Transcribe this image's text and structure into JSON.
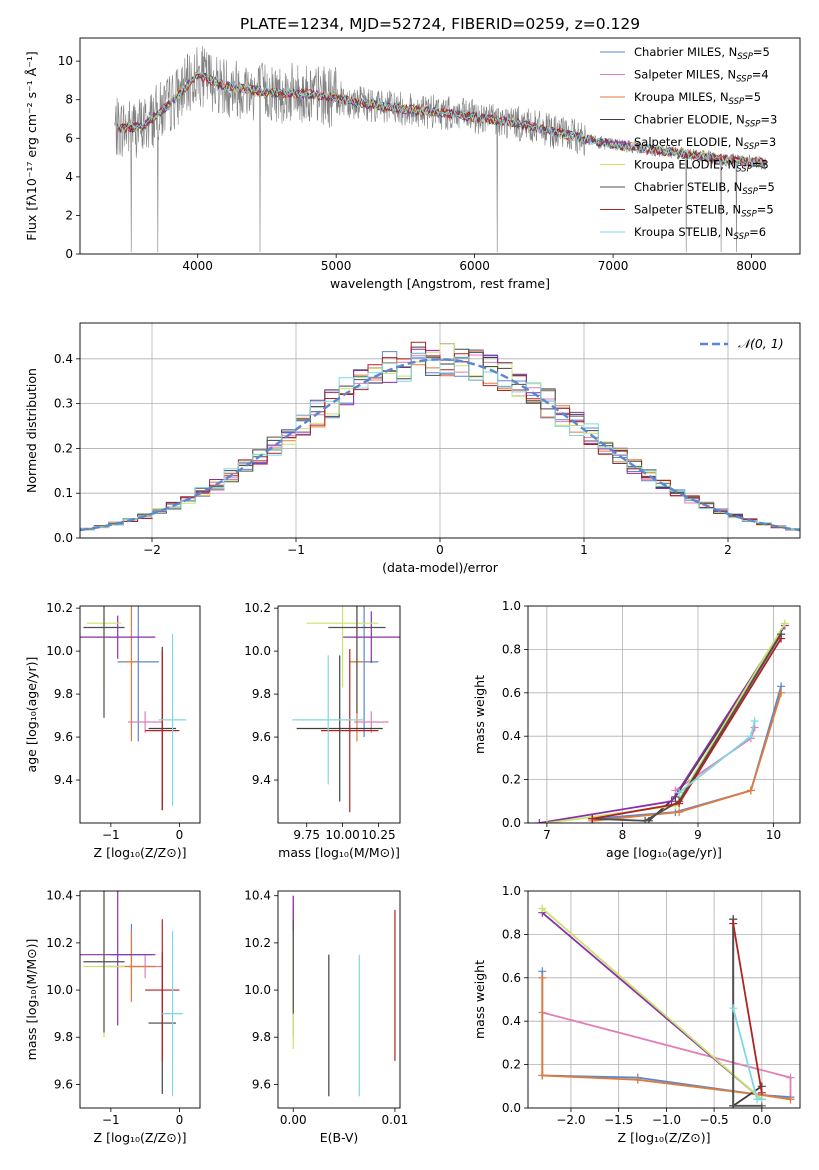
{
  "title": "PLATE=1234, MJD=52724, FIBERID=0259, z=0.129",
  "colors": [
    "#5b87d0",
    "#e07fb6",
    "#e07b39",
    "#404040",
    "#8b2fa8",
    "#c8e46c",
    "#505050",
    "#b22222",
    "#7fd8df"
  ],
  "models": [
    {
      "label": "Chabrier MILES, N",
      "sub": "SSP",
      "suffix": "=5",
      "color": "#5b87d0"
    },
    {
      "label": "Salpeter MILES, N",
      "sub": "SSP",
      "suffix": "=4",
      "color": "#e07fb6"
    },
    {
      "label": "Kroupa MILES, N",
      "sub": "SSP",
      "suffix": "=5",
      "color": "#e07b39"
    },
    {
      "label": "Chabrier ELODIE, N",
      "sub": "SSP",
      "suffix": "=3",
      "color": "#404040"
    },
    {
      "label": "Salpeter ELODIE, N",
      "sub": "SSP",
      "suffix": "=3",
      "color": "#8b2fa8"
    },
    {
      "label": "Kroupa ELODIE, N",
      "sub": "SSP",
      "suffix": "=3",
      "color": "#c8e46c"
    },
    {
      "label": "Chabrier STELIB, N",
      "sub": "SSP",
      "suffix": "=5",
      "color": "#505050"
    },
    {
      "label": "Salpeter STELIB, N",
      "sub": "SSP",
      "suffix": "=5",
      "color": "#b22222"
    },
    {
      "label": "Kroupa STELIB, N",
      "sub": "SSP",
      "suffix": "=6",
      "color": "#7fd8df"
    }
  ],
  "chart_data": [
    {
      "id": "spectrum",
      "type": "line",
      "xlabel": "wavelength [Angstrom, rest frame]",
      "ylabel": "Flux [fλ10⁻¹⁷ erg cm⁻² s⁻¹ Å⁻¹]",
      "xlim": [
        3150,
        8350
      ],
      "ylim": [
        0,
        11.2
      ],
      "xticks": [
        4000,
        5000,
        6000,
        7000,
        8000
      ],
      "yticks": [
        0,
        2,
        4,
        6,
        8,
        10
      ],
      "continuum": {
        "x": [
          3400,
          3600,
          3800,
          4000,
          4200,
          4500,
          4800,
          5000,
          5200,
          5500,
          5800,
          6000,
          6300,
          6600,
          6900,
          7200,
          7500,
          7800,
          8100
        ],
        "y": [
          6.5,
          6.6,
          7.8,
          9.3,
          8.7,
          8.4,
          8.3,
          8.1,
          7.8,
          7.5,
          7.3,
          7.1,
          6.8,
          6.3,
          5.8,
          5.5,
          5.2,
          4.9,
          4.7
        ]
      },
      "grid": false,
      "legend": "top-right"
    },
    {
      "id": "residuals",
      "type": "bar",
      "xlabel": "(data-model)/error",
      "ylabel": "Normed distribution",
      "xlim": [
        -2.5,
        2.5
      ],
      "ylim": [
        0,
        0.48
      ],
      "xticks": [
        -2,
        -1,
        0,
        1,
        2
      ],
      "yticks": [
        0.0,
        0.1,
        0.2,
        0.3,
        0.4
      ],
      "grid": true,
      "legend": "top-right",
      "gauss_label": "𝒩(0, 1)",
      "gauss_color": "#5b87d0"
    },
    {
      "id": "age-vs-Z",
      "type": "scatter",
      "xlabel": "Z [log₁₀(Z/Z⊙)]",
      "ylabel": "age  [log₁₀(age/yr)]",
      "xlim": [
        -1.45,
        0.3
      ],
      "ylim": [
        9.2,
        10.21
      ],
      "xticks": [
        -1,
        0
      ],
      "yticks": [
        9.4,
        9.6,
        9.8,
        10.0,
        10.2
      ],
      "points": [
        {
          "x": -0.6,
          "y": 9.95,
          "xerr": 0.3,
          "yerr": 0.37
        },
        {
          "x": -0.5,
          "y": 9.67,
          "xerr": 0.25,
          "yerr": 0.05
        },
        {
          "x": -0.7,
          "y": 9.95,
          "xerr": 0.1,
          "yerr": 0.37
        },
        {
          "x": -0.25,
          "y": 9.64,
          "xerr": 0.2,
          "yerr": 0.38
        },
        {
          "x": -0.9,
          "y": 10.065,
          "xerr": 0.55,
          "yerr": 0.1
        },
        {
          "x": -1.1,
          "y": 10.13,
          "xerr": 0.25,
          "yerr": 0.3
        },
        {
          "x": -1.1,
          "y": 10.11,
          "xerr": 0.3,
          "yerr": 0.42
        },
        {
          "x": -0.25,
          "y": 9.63,
          "xerr": 0.25,
          "yerr": 0.37
        },
        {
          "x": -0.1,
          "y": 9.68,
          "xerr": 0.2,
          "yerr": 0.4
        }
      ]
    },
    {
      "id": "age-vs-mass",
      "type": "scatter",
      "xlabel": "mass [log₁₀(M/M⊙)]",
      "ylabel": "",
      "xlim": [
        9.55,
        10.4
      ],
      "ylim": [
        9.2,
        10.21
      ],
      "xticks": [
        9.75,
        10.0,
        10.25
      ],
      "xticklabels": [
        "9.75",
        "10.00",
        "10.25"
      ],
      "yticks": [
        9.4,
        9.6,
        9.8,
        10.0,
        10.2
      ],
      "points": [
        {
          "x": 10.15,
          "y": 9.95,
          "xerr": 0.1,
          "yerr": 0.35
        },
        {
          "x": 10.2,
          "y": 9.67,
          "xerr": 0.12,
          "yerr": 0.05
        },
        {
          "x": 10.1,
          "y": 9.95,
          "xerr": 0.05,
          "yerr": 0.37
        },
        {
          "x": 9.98,
          "y": 9.64,
          "xerr": 0.3,
          "yerr": 0.34
        },
        {
          "x": 10.2,
          "y": 10.065,
          "xerr": 0.2,
          "yerr": 0.12
        },
        {
          "x": 10.0,
          "y": 10.13,
          "xerr": 0.25,
          "yerr": 0.3
        },
        {
          "x": 10.1,
          "y": 10.11,
          "xerr": 0.2,
          "yerr": 0.4
        },
        {
          "x": 10.05,
          "y": 9.63,
          "xerr": 0.2,
          "yerr": 0.38
        },
        {
          "x": 9.9,
          "y": 9.68,
          "xerr": 0.25,
          "yerr": 0.3
        }
      ]
    },
    {
      "id": "massweight-vs-age",
      "type": "line",
      "xlabel": "age  [log₁₀(age/yr)]",
      "ylabel": "mass weight",
      "xlim": [
        6.75,
        10.35
      ],
      "ylim": [
        0.0,
        1.0
      ],
      "xticks": [
        7,
        8,
        9,
        10
      ],
      "yticks": [
        0.0,
        0.2,
        0.4,
        0.6,
        0.8,
        1.0
      ],
      "grid": true,
      "series": [
        {
          "x": [
            7.6,
            8.7,
            9.7,
            10.1
          ],
          "y": [
            0.02,
            0.05,
            0.15,
            0.63
          ]
        },
        {
          "x": [
            8.7,
            9.7,
            9.75
          ],
          "y": [
            0.15,
            0.39,
            0.44
          ]
        },
        {
          "x": [
            7.6,
            8.75,
            9.7,
            10.1
          ],
          "y": [
            0.01,
            0.05,
            0.15,
            0.6
          ]
        },
        {
          "x": [
            8.35,
            8.7,
            10.1
          ],
          "y": [
            0.01,
            0.12,
            0.87
          ]
        },
        {
          "x": [
            6.9,
            8.65,
            10.15
          ],
          "y": [
            0.0,
            0.1,
            0.91
          ]
        },
        {
          "x": [
            7.0,
            8.7,
            10.15
          ],
          "y": [
            0.0,
            0.08,
            0.92
          ]
        },
        {
          "x": [
            7.6,
            8.3,
            8.75,
            10.1
          ],
          "y": [
            0.02,
            0.01,
            0.1,
            0.87
          ]
        },
        {
          "x": [
            7.6,
            8.75,
            10.1
          ],
          "y": [
            0.02,
            0.09,
            0.85
          ]
        },
        {
          "x": [
            8.75,
            9.7,
            9.75
          ],
          "y": [
            0.14,
            0.4,
            0.47
          ]
        }
      ]
    },
    {
      "id": "mass-vs-Z",
      "type": "scatter",
      "xlabel": "Z [log₁₀(Z/Z⊙)]",
      "ylabel": "mass [log₁₀(M/M⊙)]",
      "xlim": [
        -1.45,
        0.3
      ],
      "ylim": [
        9.5,
        10.42
      ],
      "xticks": [
        -1,
        0
      ],
      "yticks": [
        9.6,
        9.8,
        10.0,
        10.2,
        10.4
      ],
      "points": [
        {
          "x": -0.7,
          "y": 10.15,
          "xerr": 0.3,
          "yerr": 0.13
        },
        {
          "x": -0.5,
          "y": 10.1,
          "xerr": 0.25,
          "yerr": 0.05
        },
        {
          "x": -0.7,
          "y": 10.1,
          "xerr": 0.35,
          "yerr": 0.15
        },
        {
          "x": -0.25,
          "y": 9.86,
          "xerr": 0.2,
          "yerr": 0.3
        },
        {
          "x": -0.9,
          "y": 10.15,
          "xerr": 0.55,
          "yerr": 0.3
        },
        {
          "x": -1.1,
          "y": 10.1,
          "xerr": 0.3,
          "yerr": 0.3
        },
        {
          "x": -1.1,
          "y": 10.12,
          "xerr": 0.3,
          "yerr": 0.3
        },
        {
          "x": -0.25,
          "y": 10.0,
          "xerr": 0.25,
          "yerr": 0.3
        },
        {
          "x": -0.1,
          "y": 9.9,
          "xerr": 0.15,
          "yerr": 0.35
        }
      ]
    },
    {
      "id": "mass-vs-EBV",
      "type": "scatter",
      "xlabel": "E(B-V)",
      "ylabel": "",
      "xlim": [
        -0.0015,
        0.0105
      ],
      "ylim": [
        9.5,
        10.42
      ],
      "xticks": [
        0.0,
        0.01
      ],
      "xticklabels": [
        "0.00",
        "0.01"
      ],
      "yticks": [
        9.6,
        9.8,
        10.0,
        10.2,
        10.4
      ],
      "points": [
        {
          "x": 0.0,
          "y": 10.15,
          "xerr": 0,
          "yerr": 0.2
        },
        {
          "x": 0.0,
          "y": 10.1,
          "xerr": 0,
          "yerr": 0.3
        },
        {
          "x": 0.0,
          "y": 10.1,
          "xerr": 0,
          "yerr": 0.15
        },
        {
          "x": 0.0035,
          "y": 9.85,
          "xerr": 0,
          "yerr": 0.3
        },
        {
          "x": 0.0,
          "y": 10.2,
          "xerr": 0,
          "yerr": 0.2
        },
        {
          "x": 0.0,
          "y": 10.0,
          "xerr": 0,
          "yerr": 0.25
        },
        {
          "x": 0.0,
          "y": 10.1,
          "xerr": 0,
          "yerr": 0.2
        },
        {
          "x": 0.01,
          "y": 10.02,
          "xerr": 0,
          "yerr": 0.32
        },
        {
          "x": 0.0065,
          "y": 9.85,
          "xerr": 0,
          "yerr": 0.3
        }
      ]
    },
    {
      "id": "massweight-vs-Z",
      "type": "line",
      "xlabel": "Z [log₁₀(Z/Z⊙)]",
      "ylabel": "mass weight",
      "xlim": [
        -2.45,
        0.4
      ],
      "ylim": [
        0.0,
        1.0
      ],
      "xticks": [
        -2.0,
        -1.5,
        -1.0,
        -0.5,
        0.0
      ],
      "xticklabels": [
        "−2.0",
        "−1.5",
        "−1.0",
        "−0.5",
        "0.0"
      ],
      "yticks": [
        0.0,
        0.2,
        0.4,
        0.6,
        0.8,
        1.0
      ],
      "grid": true,
      "series": [
        {
          "x": [
            -2.3,
            -2.3,
            -1.3,
            0.0,
            0.3
          ],
          "y": [
            0.63,
            0.15,
            0.14,
            0.06,
            0.05
          ]
        },
        {
          "x": [
            -2.3,
            0.3,
            0.3
          ],
          "y": [
            0.44,
            0.14,
            0.04
          ]
        },
        {
          "x": [
            -2.3,
            -2.3,
            -1.3,
            0.0,
            0.3
          ],
          "y": [
            0.6,
            0.15,
            0.13,
            0.06,
            0.04
          ]
        },
        {
          "x": [
            -0.3,
            -0.3,
            0.0
          ],
          "y": [
            0.87,
            0.01,
            0.1
          ]
        },
        {
          "x": [
            -2.3,
            0.0
          ],
          "y": [
            0.9,
            0.04
          ]
        },
        {
          "x": [
            -2.3,
            0.0
          ],
          "y": [
            0.92,
            0.04
          ]
        },
        {
          "x": [
            -0.3,
            -0.3,
            0.0
          ],
          "y": [
            0.87,
            0.01,
            0.01
          ]
        },
        {
          "x": [
            -0.3,
            0.0
          ],
          "y": [
            0.85,
            0.07
          ]
        },
        {
          "x": [
            -0.3,
            -0.05,
            0.0
          ],
          "y": [
            0.46,
            0.04,
            0.04
          ]
        }
      ]
    }
  ]
}
